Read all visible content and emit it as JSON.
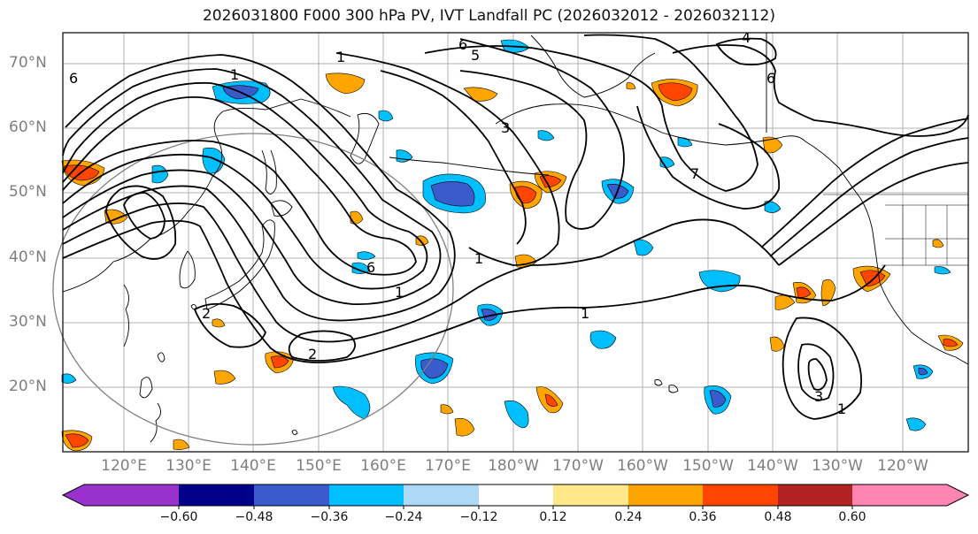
{
  "title": "2026031800 F000 300 hPa PV, IVT Landfall PC (2026032012 - 2026032112)",
  "map": {
    "lat_ticks": [
      {
        "label": "70°N",
        "lat": 70
      },
      {
        "label": "60°N",
        "lat": 60
      },
      {
        "label": "50°N",
        "lat": 50
      },
      {
        "label": "40°N",
        "lat": 40
      },
      {
        "label": "30°N",
        "lat": 30
      },
      {
        "label": "20°N",
        "lat": 20
      }
    ],
    "lon_ticks": [
      {
        "label": "120°E",
        "lon": 120
      },
      {
        "label": "130°E",
        "lon": 130
      },
      {
        "label": "140°E",
        "lon": 140
      },
      {
        "label": "150°E",
        "lon": 150
      },
      {
        "label": "160°E",
        "lon": 160
      },
      {
        "label": "170°E",
        "lon": 170
      },
      {
        "label": "180°W",
        "lon": 180
      },
      {
        "label": "170°W",
        "lon": 190
      },
      {
        "label": "160°W",
        "lon": 200
      },
      {
        "label": "150°W",
        "lon": 210
      },
      {
        "label": "140°W",
        "lon": 220
      },
      {
        "label": "130°W",
        "lon": 230
      },
      {
        "label": "120°W",
        "lon": 240
      }
    ],
    "contour_labels": [
      "1",
      "1",
      "1",
      "1",
      "1",
      "1",
      "2",
      "2",
      "3",
      "3",
      "4",
      "5",
      "6",
      "6",
      "6",
      "6",
      "7"
    ],
    "colors": {
      "coast": "#000000",
      "grid": "#b0b0b0",
      "circle": "#808080",
      "contour": "#000000"
    }
  },
  "colorbar": {
    "labels": [
      "−0.60",
      "−0.48",
      "−0.36",
      "−0.24",
      "−0.12",
      "0.12",
      "0.24",
      "0.36",
      "0.48",
      "0.60"
    ],
    "colors": [
      "#9932cc",
      "#00008b",
      "#3a5bcc",
      "#00bfff",
      "#add8f6",
      "#ffffff",
      "#ffe88a",
      "#ffa500",
      "#ff4500",
      "#b22222",
      "#ff85b3"
    ]
  }
}
